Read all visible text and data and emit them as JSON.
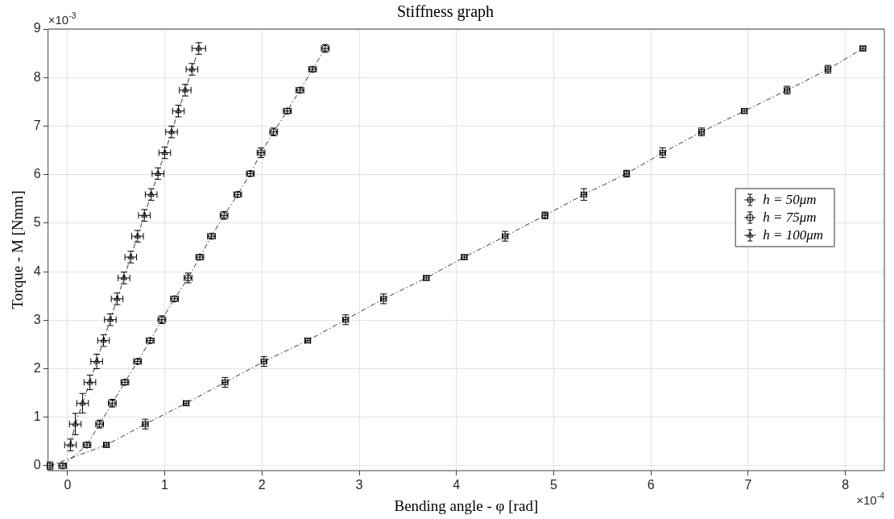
{
  "chart_data": {
    "type": "line",
    "title": "Stiffness graph",
    "xlabel": "Bending angle - φ [rad]",
    "ylabel": "Torque - M [Nmm]",
    "xlim": [
      -0.2,
      8.4
    ],
    "xticks": [
      0,
      1,
      2,
      3,
      4,
      5,
      6,
      7,
      8
    ],
    "ylim": [
      -0.1,
      9
    ],
    "yticks": [
      0,
      1,
      2,
      3,
      4,
      5,
      6,
      7,
      8,
      9
    ],
    "grid": true,
    "legend": "right",
    "line_style": "dashed",
    "annotations": [
      "×10$^{-3}$",
      "×10$^{-4}$"
    ],
    "series": [
      {
        "name": "h = 50μm",
        "color": "#000000",
        "marker": "square",
        "x": [
          -0.18,
          0.4,
          0.8,
          1.22,
          1.62,
          2.02,
          2.47,
          2.86,
          3.25,
          3.69,
          4.08,
          4.5,
          4.91,
          5.31,
          5.75,
          6.12,
          6.52,
          6.96,
          7.4,
          7.82,
          8.18
        ],
        "values": [
          0,
          0.43,
          0.86,
          1.29,
          1.72,
          2.15,
          2.58,
          3.01,
          3.44,
          3.87,
          4.3,
          4.73,
          5.16,
          5.59,
          6.02,
          6.45,
          6.88,
          7.31,
          7.74,
          8.17,
          8.6
        ],
        "errors": [
          0.08,
          0.05,
          0.1,
          0.05,
          0.1,
          0.1,
          0.05,
          0.1,
          0.1,
          0.05,
          0.05,
          0.1,
          0.07,
          0.12,
          0.07,
          0.1,
          0.08,
          0.05,
          0.08,
          0.08,
          0.05
        ],
        "xerrors": [
          0.03,
          0.03,
          0.03,
          0.03,
          0.03,
          0.03,
          0.03,
          0.03,
          0.03,
          0.03,
          0.03,
          0.03,
          0.03,
          0.03,
          0.03,
          0.03,
          0.03,
          0.03,
          0.03,
          0.03,
          0.03
        ]
      },
      {
        "name": "h = 75μm",
        "color": "#000000",
        "marker": "circle",
        "x": [
          -0.05,
          0.2,
          0.33,
          0.46,
          0.59,
          0.72,
          0.85,
          0.97,
          1.1,
          1.24,
          1.36,
          1.48,
          1.61,
          1.75,
          1.88,
          1.99,
          2.12,
          2.26,
          2.39,
          2.52,
          2.65
        ],
        "values": [
          0,
          0.43,
          0.86,
          1.29,
          1.72,
          2.15,
          2.58,
          3.01,
          3.44,
          3.87,
          4.3,
          4.73,
          5.16,
          5.59,
          6.02,
          6.45,
          6.88,
          7.31,
          7.74,
          8.17,
          8.6
        ],
        "errors": [
          0.05,
          0.05,
          0.08,
          0.08,
          0.05,
          0.05,
          0.05,
          0.08,
          0.05,
          0.1,
          0.05,
          0.05,
          0.08,
          0.05,
          0.05,
          0.1,
          0.08,
          0.05,
          0.05,
          0.05,
          0.08
        ],
        "xerrors": [
          0.04,
          0.04,
          0.04,
          0.04,
          0.04,
          0.04,
          0.04,
          0.04,
          0.04,
          0.04,
          0.04,
          0.04,
          0.04,
          0.04,
          0.04,
          0.04,
          0.04,
          0.04,
          0.04,
          0.04,
          0.04
        ]
      },
      {
        "name": "h = 100μm",
        "color": "#000000",
        "marker": "triangle",
        "x": [
          0.03,
          0.08,
          0.155,
          0.23,
          0.3,
          0.37,
          0.44,
          0.51,
          0.58,
          0.65,
          0.72,
          0.79,
          0.86,
          0.93,
          1.0,
          1.07,
          1.14,
          1.21,
          1.28,
          1.35
        ],
        "values": [
          0.43,
          0.86,
          1.29,
          1.72,
          2.15,
          2.58,
          3.01,
          3.44,
          3.87,
          4.3,
          4.73,
          5.16,
          5.59,
          6.02,
          6.45,
          6.88,
          7.31,
          7.74,
          8.17,
          8.6
        ],
        "errors": [
          0.12,
          0.22,
          0.2,
          0.15,
          0.15,
          0.12,
          0.12,
          0.12,
          0.12,
          0.12,
          0.12,
          0.12,
          0.12,
          0.12,
          0.12,
          0.12,
          0.12,
          0.12,
          0.12,
          0.12
        ],
        "xerrors": [
          0.06,
          0.06,
          0.06,
          0.06,
          0.06,
          0.06,
          0.06,
          0.06,
          0.06,
          0.06,
          0.06,
          0.06,
          0.06,
          0.06,
          0.06,
          0.06,
          0.06,
          0.06,
          0.06,
          0.07
        ]
      }
    ]
  }
}
